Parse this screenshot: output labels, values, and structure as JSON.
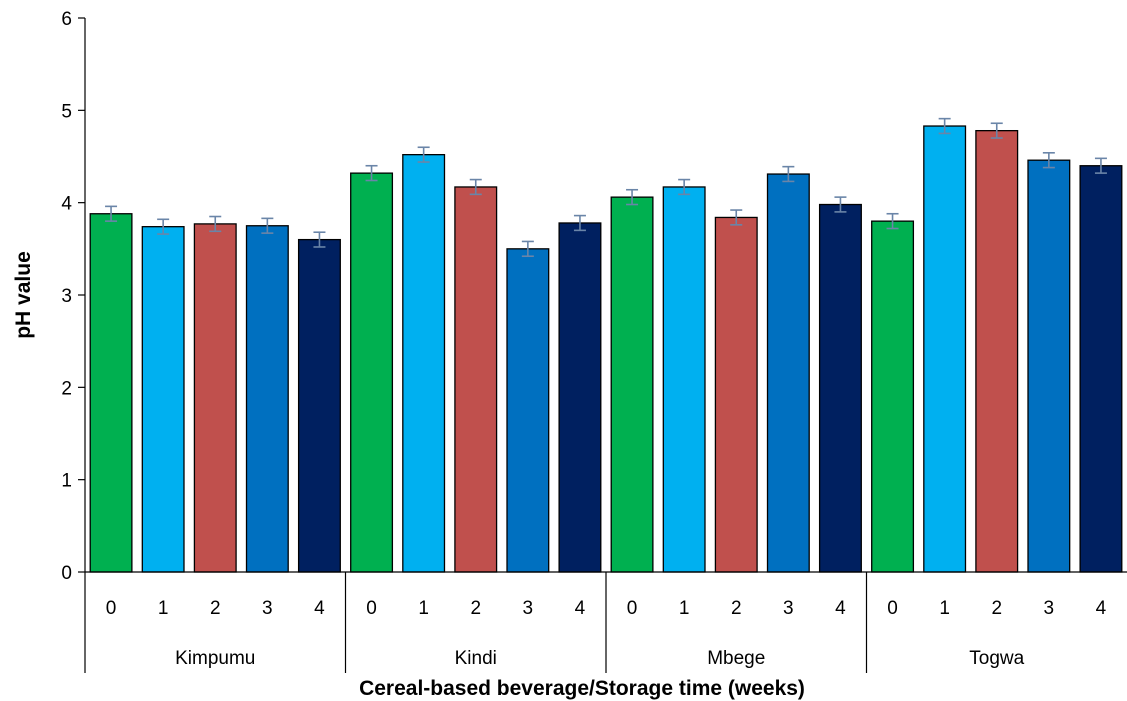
{
  "chart_data": {
    "type": "bar",
    "title": "",
    "xlabel": "Cereal-based beverage/Storage time (weeks)",
    "ylabel": "pH value",
    "ylim": [
      0,
      6
    ],
    "yticks": [
      0,
      1,
      2,
      3,
      4,
      5,
      6
    ],
    "grid": false,
    "legend": "none",
    "groups": [
      {
        "name": "Kimpumu",
        "categories": [
          "0",
          "1",
          "2",
          "3",
          "4"
        ],
        "values": [
          3.88,
          3.74,
          3.77,
          3.75,
          3.6
        ],
        "errors": [
          0.08,
          0.08,
          0.08,
          0.08,
          0.08
        ]
      },
      {
        "name": "Kindi",
        "categories": [
          "0",
          "1",
          "2",
          "3",
          "4"
        ],
        "values": [
          4.32,
          4.52,
          4.17,
          3.5,
          3.78
        ],
        "errors": [
          0.08,
          0.08,
          0.08,
          0.08,
          0.08
        ]
      },
      {
        "name": "Mbege",
        "categories": [
          "0",
          "1",
          "2",
          "3",
          "4"
        ],
        "values": [
          4.06,
          4.17,
          3.84,
          4.31,
          3.98
        ],
        "errors": [
          0.08,
          0.08,
          0.08,
          0.08,
          0.08
        ]
      },
      {
        "name": "Togwa",
        "categories": [
          "0",
          "1",
          "2",
          "3",
          "4"
        ],
        "values": [
          3.8,
          4.83,
          4.78,
          4.46,
          4.4
        ],
        "errors": [
          0.08,
          0.08,
          0.08,
          0.08,
          0.08
        ]
      }
    ],
    "colors": [
      "#00b050",
      "#00b0f0",
      "#c0504d",
      "#0070c0",
      "#002060"
    ],
    "error_bar_color": "#6a85a8"
  }
}
